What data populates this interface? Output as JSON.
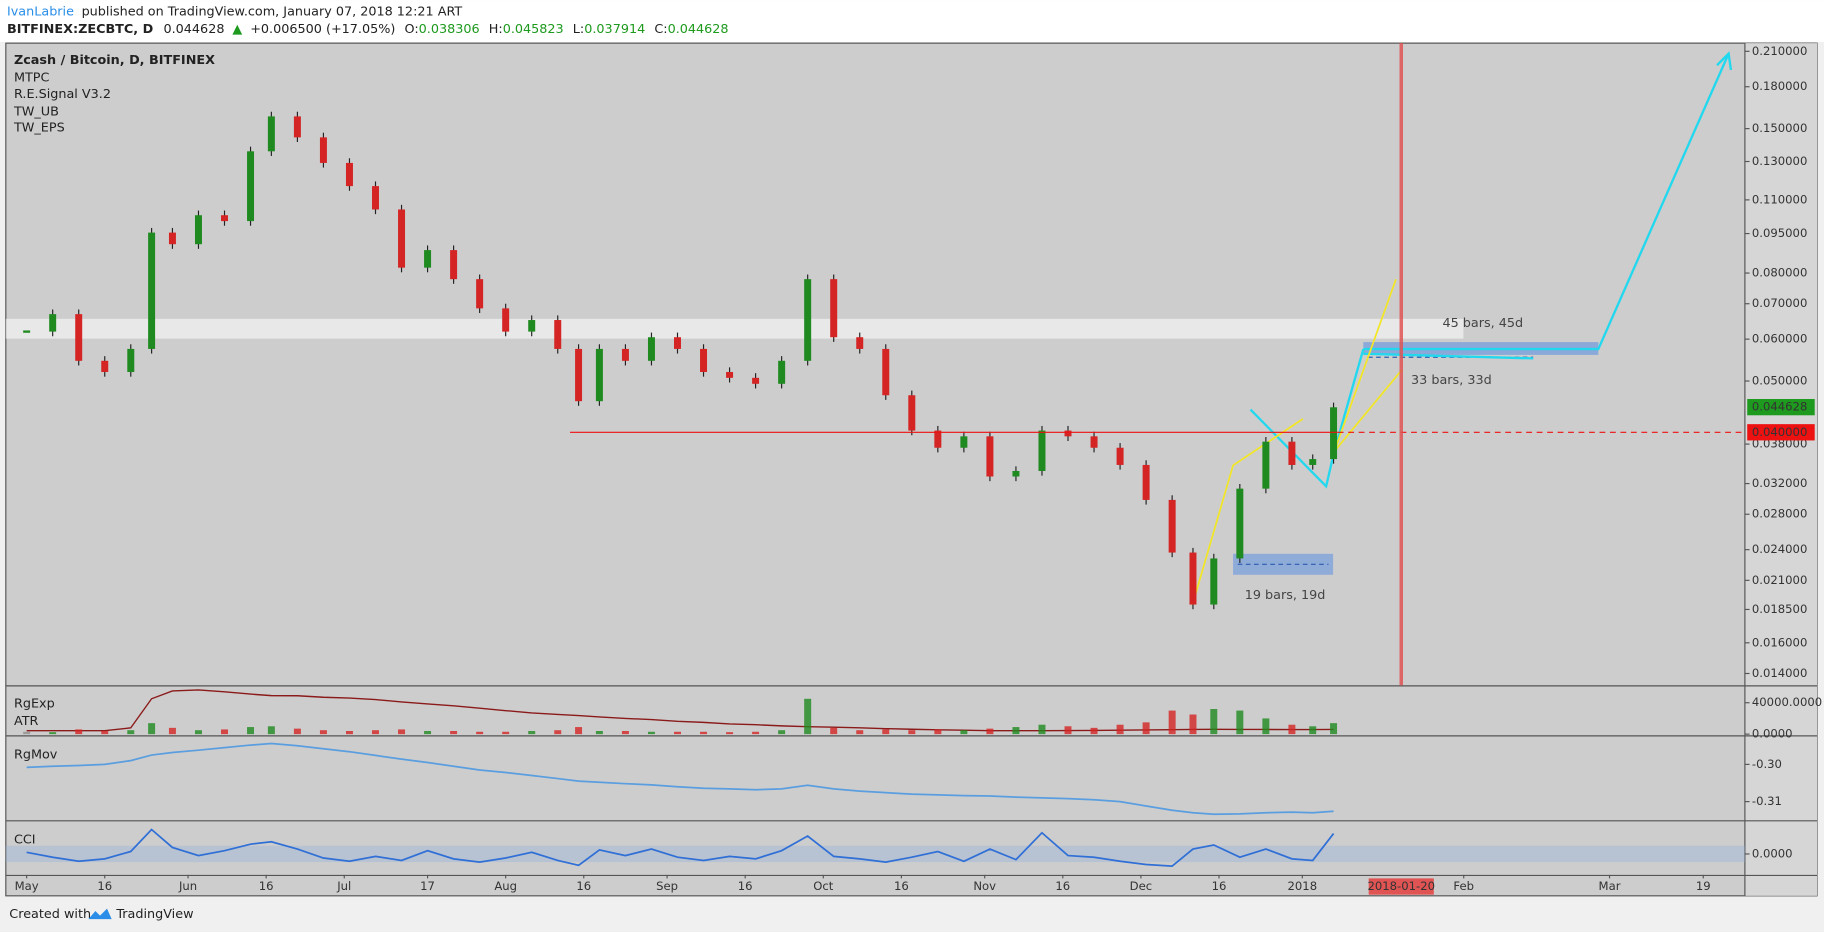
{
  "header": {
    "author": "IvanLabrie",
    "published": "published on TradingView.com, January 07, 2018 12:21 ART",
    "symbol": "BITFINEX:ZECBTC, D",
    "last": "0.044628",
    "change": "+0.006500 (+17.05%)",
    "ohlc": [
      [
        "O:",
        "0.038306"
      ],
      [
        "H:",
        "0.045823"
      ],
      [
        "L:",
        "0.037914"
      ],
      [
        "C:",
        "0.044628"
      ]
    ]
  },
  "footer": {
    "created": "Created with",
    "brand": "TradingView"
  },
  "chart_data": [
    {
      "type": "candlestick",
      "title": "Zcash / Bitcoin, D, BITFINEX",
      "indicators": [
        "MTPC",
        "R.E.Signal V3.2",
        "TW_UB",
        "TW_EPS"
      ],
      "x": [
        "2017-05-01",
        "2017-05-06",
        "2017-05-11",
        "2017-05-16",
        "2017-05-21",
        "2017-05-25",
        "2017-05-29",
        "2017-06-03",
        "2017-06-08",
        "2017-06-13",
        "2017-06-17",
        "2017-06-22",
        "2017-06-27",
        "2017-07-02",
        "2017-07-07",
        "2017-07-12",
        "2017-07-17",
        "2017-07-22",
        "2017-07-27",
        "2017-08-01",
        "2017-08-06",
        "2017-08-11",
        "2017-08-15",
        "2017-08-19",
        "2017-08-24",
        "2017-08-29",
        "2017-09-03",
        "2017-09-08",
        "2017-09-13",
        "2017-09-18",
        "2017-09-23",
        "2017-09-28",
        "2017-10-03",
        "2017-10-08",
        "2017-10-13",
        "2017-10-18",
        "2017-10-23",
        "2017-10-28",
        "2017-11-02",
        "2017-11-07",
        "2017-11-12",
        "2017-11-17",
        "2017-11-22",
        "2017-11-27",
        "2017-12-02",
        "2017-12-07",
        "2017-12-11",
        "2017-12-15",
        "2017-12-20",
        "2017-12-25",
        "2017-12-30",
        "2018-01-03",
        "2018-01-07"
      ],
      "values": [
        0.062,
        0.0669,
        0.0546,
        0.052,
        0.0575,
        0.0954,
        0.0907,
        0.1029,
        0.1003,
        0.1359,
        0.1582,
        0.1444,
        0.1292,
        0.1168,
        0.1055,
        0.0819,
        0.0884,
        0.0779,
        0.0686,
        0.062,
        0.0652,
        0.0575,
        0.0458,
        0.0575,
        0.0546,
        0.0605,
        0.0575,
        0.052,
        0.0507,
        0.0494,
        0.0546,
        0.0779,
        0.0605,
        0.0575,
        0.047,
        0.0403,
        0.0374,
        0.0393,
        0.033,
        0.0338,
        0.0403,
        0.0393,
        0.0374,
        0.0347,
        0.0298,
        0.0237,
        0.0189,
        0.0231,
        0.0313,
        0.0384,
        0.0347,
        0.0356,
        0.0446
      ],
      "up_color": "#1f8a1f",
      "down_color": "#d42424",
      "log": true,
      "ylim": [
        0.0133,
        0.2176
      ],
      "yticks": [
        {
          "value": 0.21,
          "label": "0.210000"
        },
        {
          "value": 0.18,
          "label": "0.180000"
        },
        {
          "value": 0.15,
          "label": "0.150000"
        },
        {
          "value": 0.13,
          "label": "0.130000"
        },
        {
          "value": 0.11,
          "label": "0.110000"
        },
        {
          "value": 0.095,
          "label": "0.095000"
        },
        {
          "value": 0.08,
          "label": "0.080000"
        },
        {
          "value": 0.07,
          "label": "0.070000"
        },
        {
          "value": 0.06,
          "label": "0.060000"
        },
        {
          "value": 0.05,
          "label": "0.050000"
        },
        {
          "value": 0.038,
          "label": "0.038000"
        },
        {
          "value": 0.032,
          "label": "0.032000"
        },
        {
          "value": 0.028,
          "label": "0.028000"
        },
        {
          "value": 0.024,
          "label": "0.024000"
        },
        {
          "value": 0.021,
          "label": "0.021000"
        },
        {
          "value": 0.0185,
          "label": "0.018500"
        },
        {
          "value": 0.016,
          "label": "0.016000"
        },
        {
          "value": 0.014,
          "label": "0.014000"
        }
      ],
      "xlim": [
        "2017-04-27",
        "2018-03-27"
      ],
      "xticks": [
        {
          "value": "2017-05-01",
          "label": "May"
        },
        {
          "value": "2017-05-16",
          "label": "16"
        },
        {
          "value": "2017-06-01",
          "label": "Jun"
        },
        {
          "value": "2017-06-16",
          "label": "16"
        },
        {
          "value": "2017-07-01",
          "label": "Jul"
        },
        {
          "value": "2017-07-17",
          "label": "17"
        },
        {
          "value": "2017-08-01",
          "label": "Aug"
        },
        {
          "value": "2017-08-16",
          "label": "16"
        },
        {
          "value": "2017-09-01",
          "label": "Sep"
        },
        {
          "value": "2017-09-16",
          "label": "16"
        },
        {
          "value": "2017-10-01",
          "label": "Oct"
        },
        {
          "value": "2017-10-16",
          "label": "16"
        },
        {
          "value": "2017-11-01",
          "label": "Nov"
        },
        {
          "value": "2017-11-16",
          "label": "16"
        },
        {
          "value": "2017-12-01",
          "label": "Dec"
        },
        {
          "value": "2017-12-16",
          "label": "16"
        },
        {
          "value": "2018-01-01",
          "label": "2018"
        },
        {
          "value": "2018-02-01",
          "label": "Feb"
        },
        {
          "value": "2018-03-01",
          "label": "Mar"
        },
        {
          "value": "2018-03-19",
          "label": "19"
        }
      ],
      "last_price": {
        "value": 0.044628,
        "label": "0.044628"
      },
      "last_color": "#1e9a1e",
      "level": {
        "value": 0.04,
        "label": "0.040000"
      },
      "level_color": "#ee1111",
      "marker_date": "2018-01-20",
      "marker_color": "#e05454",
      "annotations": [
        "45 bars, 45d",
        "33 bars, 33d",
        "19 bars, 19d"
      ]
    },
    {
      "type": "bar",
      "x": [
        "2017-05-01",
        "2017-05-06",
        "2017-05-11",
        "2017-05-16",
        "2017-05-21",
        "2017-05-25",
        "2017-05-29",
        "2017-06-03",
        "2017-06-08",
        "2017-06-13",
        "2017-06-17",
        "2017-06-22",
        "2017-06-27",
        "2017-07-02",
        "2017-07-07",
        "2017-07-12",
        "2017-07-17",
        "2017-07-22",
        "2017-07-27",
        "2017-08-01",
        "2017-08-06",
        "2017-08-11",
        "2017-08-15",
        "2017-08-19",
        "2017-08-24",
        "2017-08-29",
        "2017-09-03",
        "2017-09-08",
        "2017-09-13",
        "2017-09-18",
        "2017-09-23",
        "2017-09-28",
        "2017-10-03",
        "2017-10-08",
        "2017-10-13",
        "2017-10-18",
        "2017-10-23",
        "2017-10-28",
        "2017-11-02",
        "2017-11-07",
        "2017-11-12",
        "2017-11-17",
        "2017-11-22",
        "2017-11-27",
        "2017-12-02",
        "2017-12-07",
        "2017-12-11",
        "2017-12-15",
        "2017-12-20",
        "2017-12-25",
        "2017-12-30",
        "2018-01-03",
        "2018-01-07"
      ],
      "series": [
        {
          "name": "RgExp",
          "kind": "line",
          "color": "#8b1a1a",
          "values": [
            4444,
            4400,
            4400,
            4444,
            8000,
            45000,
            55000,
            56300,
            54000,
            51000,
            49000,
            48900,
            47000,
            46000,
            44000,
            41000,
            38500,
            36000,
            33000,
            30000,
            27000,
            25000,
            23700,
            22000,
            20000,
            18500,
            16300,
            15000,
            13000,
            12000,
            10500,
            9500,
            8900,
            8000,
            7000,
            6200,
            5500,
            5000,
            4500,
            4400,
            4500,
            4600,
            4800,
            5000,
            5300,
            5700,
            6000,
            6100,
            6000,
            5900,
            5800,
            5800,
            5900
          ]
        },
        {
          "name": "ATR",
          "kind": "bar",
          "color": "#8f8f8f",
          "values": [
            3000,
            2500,
            6000,
            4000,
            5000,
            14000,
            8000,
            5000,
            6000,
            9000,
            10000,
            7000,
            5000,
            4000,
            5000,
            6000,
            4000,
            4000,
            3000,
            3000,
            4000,
            5000,
            9000,
            4000,
            4000,
            3000,
            3000,
            3000,
            2500,
            3000,
            5000,
            45000,
            8000,
            5000,
            6000,
            5000,
            6000,
            5000,
            7000,
            9000,
            12000,
            10000,
            8000,
            12000,
            15000,
            30000,
            25000,
            32000,
            30000,
            20000,
            12000,
            10000,
            14000
          ]
        }
      ],
      "ylim": [
        -1481,
        60741
      ],
      "yticks": [
        {
          "value": 40000,
          "label": "40000.0000"
        },
        {
          "value": 0,
          "label": "0.0000"
        }
      ]
    },
    {
      "type": "line",
      "title": "RgMov",
      "color": "#5a9ee0",
      "x": [
        "2017-05-01",
        "2017-05-06",
        "2017-05-11",
        "2017-05-16",
        "2017-05-21",
        "2017-05-25",
        "2017-05-29",
        "2017-06-03",
        "2017-06-08",
        "2017-06-13",
        "2017-06-17",
        "2017-06-22",
        "2017-06-27",
        "2017-07-02",
        "2017-07-07",
        "2017-07-12",
        "2017-07-17",
        "2017-07-22",
        "2017-07-27",
        "2017-08-01",
        "2017-08-06",
        "2017-08-11",
        "2017-08-15",
        "2017-08-19",
        "2017-08-24",
        "2017-08-29",
        "2017-09-03",
        "2017-09-08",
        "2017-09-13",
        "2017-09-18",
        "2017-09-23",
        "2017-09-28",
        "2017-10-03",
        "2017-10-08",
        "2017-10-13",
        "2017-10-18",
        "2017-10-23",
        "2017-10-28",
        "2017-11-02",
        "2017-11-07",
        "2017-11-12",
        "2017-11-17",
        "2017-11-22",
        "2017-11-27",
        "2017-12-02",
        "2017-12-07",
        "2017-12-11",
        "2017-12-15",
        "2017-12-20",
        "2017-12-25",
        "2017-12-30",
        "2018-01-03",
        "2018-01-07"
      ],
      "values": [
        -0.3008,
        -0.3005,
        -0.3003,
        -0.3,
        -0.299,
        -0.2975,
        -0.2968,
        -0.2962,
        -0.2955,
        -0.2948,
        -0.2944,
        -0.295,
        -0.2958,
        -0.2966,
        -0.2976,
        -0.2986,
        -0.2995,
        -0.3005,
        -0.3015,
        -0.3022,
        -0.303,
        -0.3038,
        -0.3045,
        -0.3048,
        -0.3052,
        -0.3055,
        -0.306,
        -0.3064,
        -0.3066,
        -0.3068,
        -0.3066,
        -0.3056,
        -0.3066,
        -0.3072,
        -0.3076,
        -0.308,
        -0.3082,
        -0.3084,
        -0.3085,
        -0.3088,
        -0.309,
        -0.3092,
        -0.3095,
        -0.31,
        -0.3112,
        -0.3123,
        -0.313,
        -0.3134,
        -0.3133,
        -0.313,
        -0.3128,
        -0.313,
        -0.3126
      ],
      "ylim": [
        -0.315,
        -0.2925
      ],
      "yticks": [
        {
          "value": -0.3,
          "label": "-0.30"
        },
        {
          "value": -0.31,
          "label": "-0.31"
        }
      ]
    },
    {
      "type": "line",
      "title": "CCI",
      "color": "#2f6fd6",
      "x": [
        "2017-05-01",
        "2017-05-06",
        "2017-05-11",
        "2017-05-16",
        "2017-05-21",
        "2017-05-25",
        "2017-05-29",
        "2017-06-03",
        "2017-06-08",
        "2017-06-13",
        "2017-06-17",
        "2017-06-22",
        "2017-06-27",
        "2017-07-02",
        "2017-07-07",
        "2017-07-12",
        "2017-07-17",
        "2017-07-22",
        "2017-07-27",
        "2017-08-01",
        "2017-08-06",
        "2017-08-11",
        "2017-08-15",
        "2017-08-19",
        "2017-08-24",
        "2017-08-29",
        "2017-09-03",
        "2017-09-08",
        "2017-09-13",
        "2017-09-18",
        "2017-09-23",
        "2017-09-28",
        "2017-10-03",
        "2017-10-08",
        "2017-10-13",
        "2017-10-18",
        "2017-10-23",
        "2017-10-28",
        "2017-11-02",
        "2017-11-07",
        "2017-11-12",
        "2017-11-17",
        "2017-11-22",
        "2017-11-27",
        "2017-12-02",
        "2017-12-07",
        "2017-12-11",
        "2017-12-15",
        "2017-12-20",
        "2017-12-25",
        "2017-12-30",
        "2018-01-03",
        "2018-01-07"
      ],
      "values": [
        20,
        -40,
        -90,
        -60,
        30,
        300,
        80,
        -20,
        40,
        120,
        150,
        60,
        -50,
        -90,
        -30,
        -80,
        40,
        -60,
        -100,
        -50,
        20,
        -80,
        -140,
        50,
        -20,
        60,
        -40,
        -80,
        -30,
        -60,
        40,
        220,
        -30,
        -60,
        -100,
        -40,
        30,
        -90,
        60,
        -70,
        260,
        -20,
        -40,
        -90,
        -130,
        -150,
        60,
        110,
        -40,
        60,
        -60,
        -80,
        250
      ],
      "ylim": [
        -257,
        400
      ],
      "yticks": [
        {
          "value": 0,
          "label": "0.0000"
        }
      ]
    }
  ]
}
